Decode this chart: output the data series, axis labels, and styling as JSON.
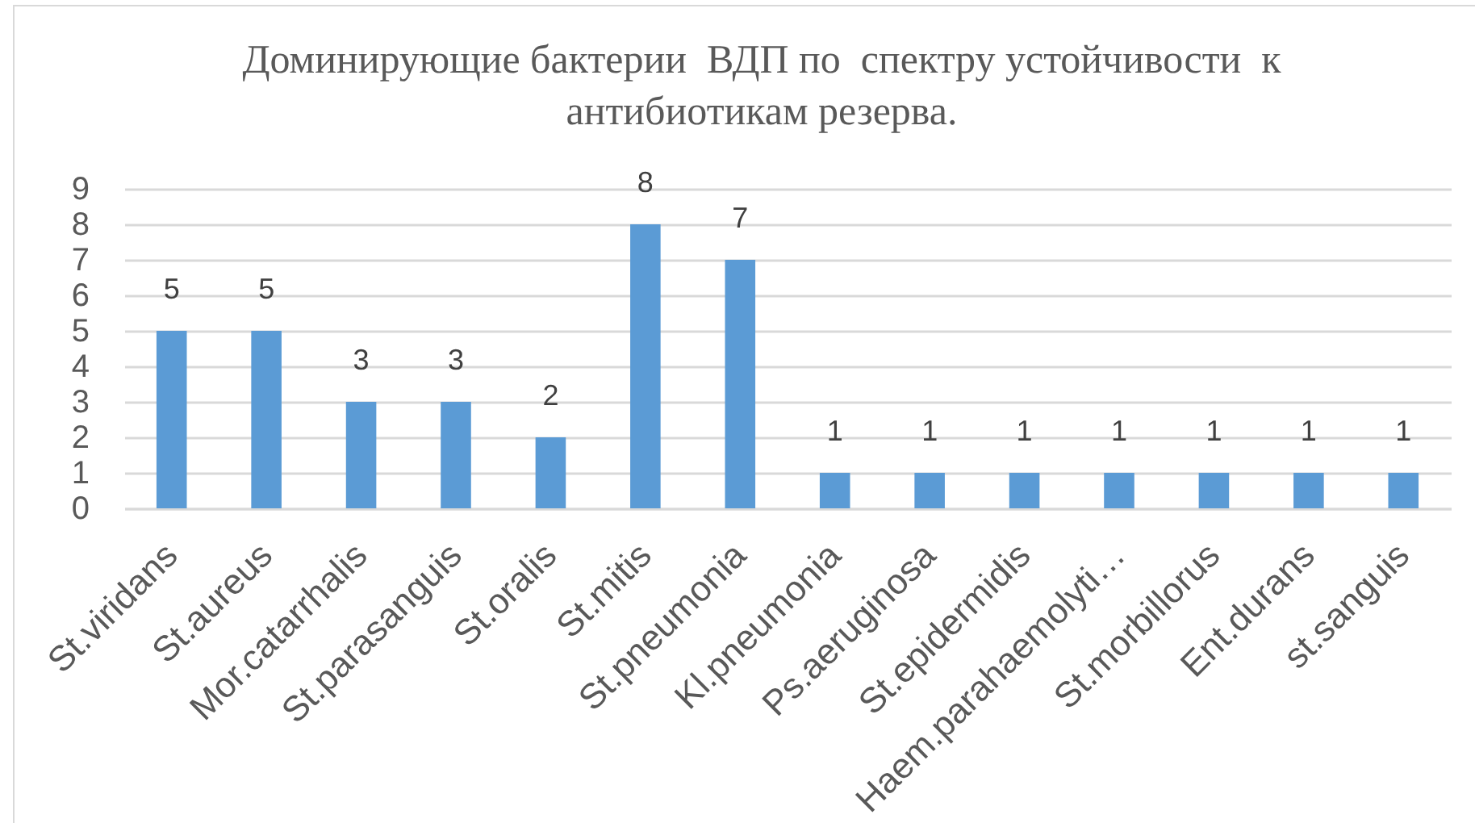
{
  "chart_data": {
    "type": "bar",
    "title": "Доминирующие бактерии  ВДП по  спектру устойчивости  к антибиотикам резерва.",
    "categories": [
      "St.viridans",
      "St.aureus",
      "Mor.catarrhalis",
      "St.parasanguis",
      "St.oralis",
      "St.mitis",
      "St.pneumonia",
      "Kl.pneumonia",
      "Ps.aeruginosa",
      "St.epidermidis",
      "Haem.parahaemolyti…",
      "St.morbillorus",
      "Ent.durans",
      "st.sanguis"
    ],
    "values": [
      5,
      5,
      3,
      3,
      2,
      8,
      7,
      1,
      1,
      1,
      1,
      1,
      1,
      1
    ],
    "color": "#5b9bd5",
    "ylim": [
      0,
      9
    ],
    "yticks": [
      0,
      1,
      2,
      3,
      4,
      5,
      6,
      7,
      8,
      9
    ],
    "grid": "y",
    "data_labels": true
  }
}
